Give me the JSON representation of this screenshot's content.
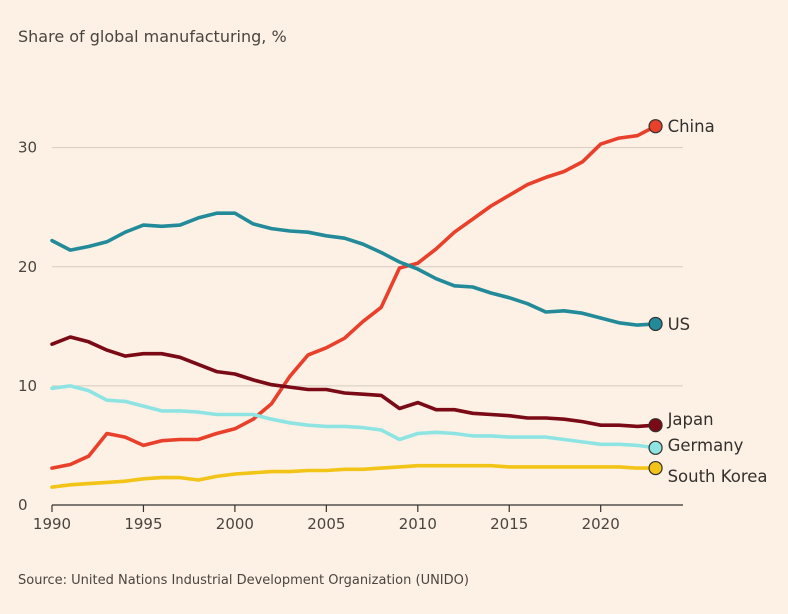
{
  "chart_data": {
    "type": "line",
    "title": "Share of global manufacturing, %",
    "source": "Source: United Nations Industrial Development Organization (UNIDO)",
    "xlabel": "",
    "ylabel": "",
    "x": [
      1990,
      1991,
      1992,
      1993,
      1994,
      1995,
      1996,
      1997,
      1998,
      1999,
      2000,
      2001,
      2002,
      2003,
      2004,
      2005,
      2006,
      2007,
      2008,
      2009,
      2010,
      2011,
      2012,
      2013,
      2014,
      2015,
      2016,
      2017,
      2018,
      2019,
      2020,
      2021,
      2022,
      2023
    ],
    "xlim": [
      1990,
      2024.5
    ],
    "ylim": [
      0,
      34
    ],
    "x_ticks": [
      {
        "value": 1990,
        "label": "1990"
      },
      {
        "value": 1995,
        "label": "1995"
      },
      {
        "value": 2000,
        "label": "2000"
      },
      {
        "value": 2005,
        "label": "2005"
      },
      {
        "value": 2010,
        "label": "2010"
      },
      {
        "value": 2015,
        "label": "2015"
      },
      {
        "value": 2020,
        "label": "2020"
      }
    ],
    "y_ticks": [
      {
        "value": 0,
        "label": "0"
      },
      {
        "value": 10,
        "label": "10"
      },
      {
        "value": 20,
        "label": "20"
      },
      {
        "value": 30,
        "label": "30"
      }
    ],
    "grid": true,
    "legend": "direct labels at line ends",
    "series": [
      {
        "name": "China",
        "color": "#e8402b",
        "label_offset": 0,
        "values": [
          3.1,
          3.4,
          4.1,
          6.0,
          5.7,
          5.0,
          5.4,
          5.5,
          5.5,
          6.0,
          6.4,
          7.2,
          8.5,
          10.8,
          12.6,
          13.2,
          14.0,
          15.4,
          16.6,
          19.9,
          20.3,
          21.5,
          22.9,
          24.0,
          25.1,
          26.0,
          26.9,
          27.5,
          28.0,
          28.8,
          30.3,
          30.8,
          31.0,
          31.8
        ]
      },
      {
        "name": "US",
        "color": "#238a9a",
        "label_offset": 0,
        "values": [
          22.2,
          21.4,
          21.7,
          22.1,
          22.9,
          23.5,
          23.4,
          23.5,
          24.1,
          24.5,
          24.5,
          23.6,
          23.2,
          23.0,
          22.9,
          22.6,
          22.4,
          21.9,
          21.2,
          20.4,
          19.8,
          19.0,
          18.4,
          18.3,
          17.8,
          17.4,
          16.9,
          16.2,
          16.3,
          16.1,
          15.7,
          15.3,
          15.1,
          15.2
        ]
      },
      {
        "name": "Japan",
        "color": "#7a0a15",
        "label_offset": -6,
        "values": [
          13.5,
          14.1,
          13.7,
          13.0,
          12.5,
          12.7,
          12.7,
          12.4,
          11.8,
          11.2,
          11.0,
          10.5,
          10.1,
          9.9,
          9.7,
          9.7,
          9.4,
          9.3,
          9.2,
          8.1,
          8.6,
          8.0,
          8.0,
          7.7,
          7.6,
          7.5,
          7.3,
          7.3,
          7.2,
          7.0,
          6.7,
          6.7,
          6.6,
          6.7
        ]
      },
      {
        "name": "Germany",
        "color": "#8ee4e3",
        "label_offset": -3,
        "values": [
          9.8,
          10.0,
          9.6,
          8.8,
          8.7,
          8.3,
          7.9,
          7.9,
          7.8,
          7.6,
          7.6,
          7.6,
          7.2,
          6.9,
          6.7,
          6.6,
          6.6,
          6.5,
          6.3,
          5.5,
          6.0,
          6.1,
          6.0,
          5.8,
          5.8,
          5.7,
          5.7,
          5.7,
          5.5,
          5.3,
          5.1,
          5.1,
          5.0,
          4.8
        ]
      },
      {
        "name": "South Korea",
        "color": "#f2c417",
        "label_offset": 8,
        "values": [
          1.5,
          1.7,
          1.8,
          1.9,
          2.0,
          2.2,
          2.3,
          2.3,
          2.1,
          2.4,
          2.6,
          2.7,
          2.8,
          2.8,
          2.9,
          2.9,
          3.0,
          3.0,
          3.1,
          3.2,
          3.3,
          3.3,
          3.3,
          3.3,
          3.3,
          3.2,
          3.2,
          3.2,
          3.2,
          3.2,
          3.2,
          3.2,
          3.1,
          3.1
        ]
      }
    ]
  }
}
